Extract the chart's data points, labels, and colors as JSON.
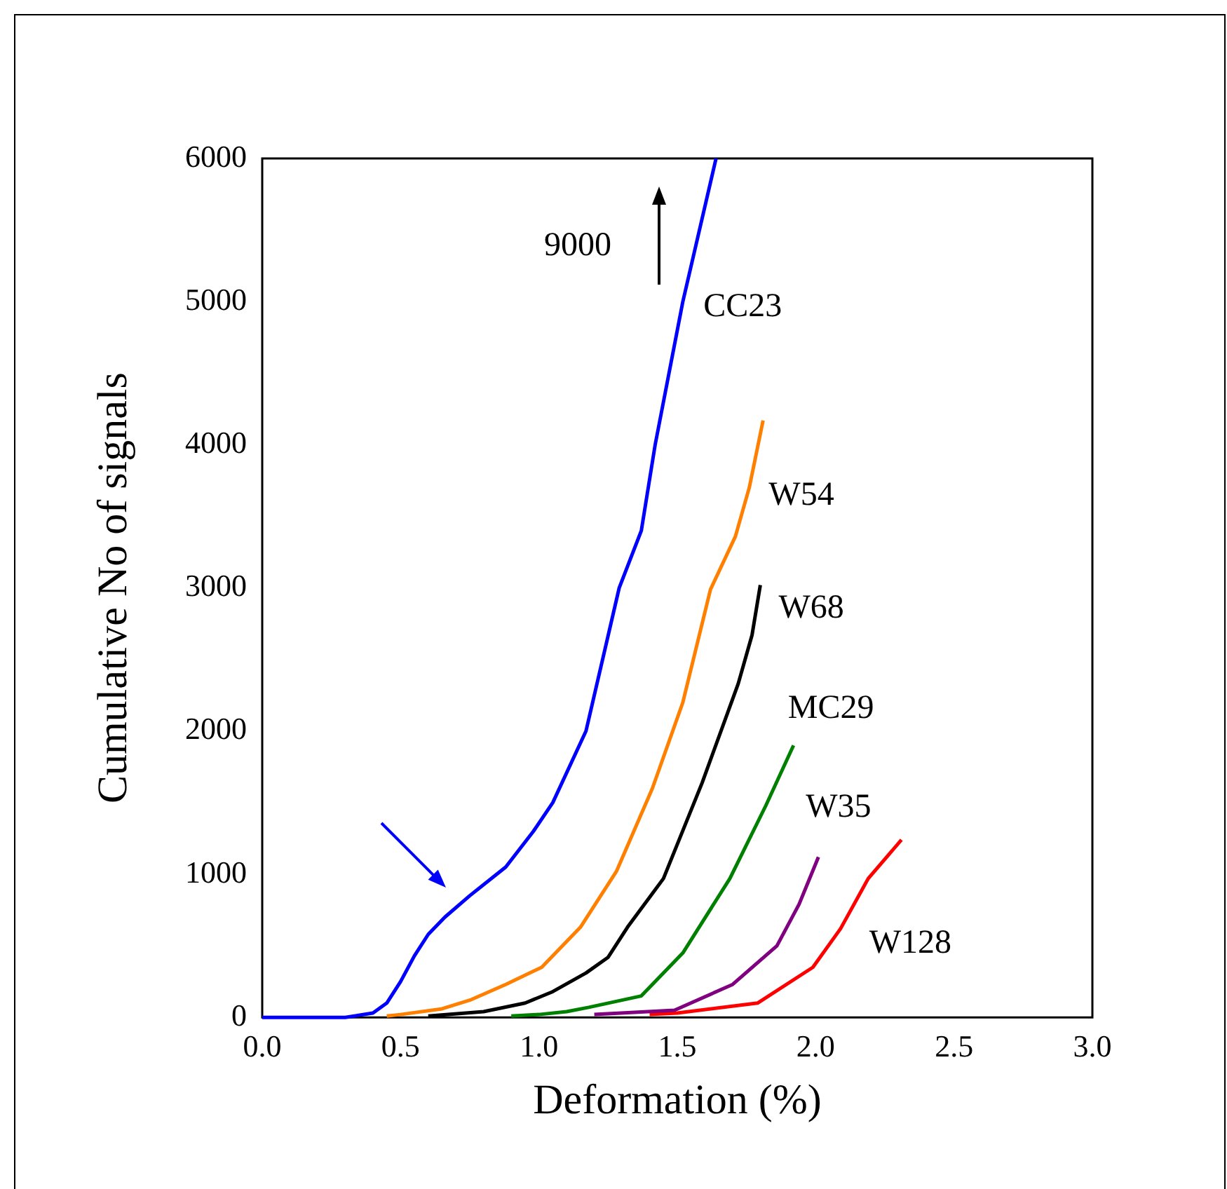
{
  "chart_data": {
    "type": "line",
    "xlabel": "Deformation (%)",
    "ylabel": "Cumulative No of signals",
    "annotations": [
      "9000"
    ],
    "xlim": [
      0,
      3
    ],
    "xticks": [
      {
        "value": 0,
        "label": "0.0"
      },
      {
        "value": 0.5,
        "label": "0.5"
      },
      {
        "value": 1,
        "label": "1.0"
      },
      {
        "value": 1.5,
        "label": "1.5"
      },
      {
        "value": 2,
        "label": "2.0"
      },
      {
        "value": 2.5,
        "label": "2.5"
      },
      {
        "value": 3,
        "label": "3.0"
      }
    ],
    "ylim": [
      0,
      6000
    ],
    "yticks": [
      0,
      1000,
      2000,
      3000,
      4000,
      5000,
      6000
    ],
    "grid": false,
    "legend": false,
    "marker": "none",
    "line_style": "solid",
    "series": [
      {
        "name": "CC23",
        "color": "#0000ff",
        "x": [
          0,
          0.3,
          0.4,
          0.45,
          0.5,
          0.55,
          0.6,
          0.66,
          0.75,
          0.88,
          0.98,
          1.05,
          1.17,
          1.29,
          1.37,
          1.42,
          1.52,
          1.64
        ],
        "values": [
          0,
          0,
          30,
          100,
          250,
          430,
          580,
          700,
          850,
          1050,
          1300,
          1500,
          2000,
          3000,
          3400,
          4000,
          5000,
          6000
        ]
      },
      {
        "name": "W54",
        "color": "#ff8000",
        "x": [
          0.45,
          0.5,
          0.65,
          0.75,
          0.88,
          1.01,
          1.15,
          1.28,
          1.41,
          1.52,
          1.62,
          1.71,
          1.76,
          1.81
        ],
        "values": [
          10,
          20,
          60,
          120,
          230,
          350,
          630,
          1020,
          1600,
          2200,
          2990,
          3360,
          3700,
          4170
        ]
      },
      {
        "name": "W68",
        "color": "#000000",
        "x": [
          0.6,
          0.8,
          0.95,
          1.05,
          1.17,
          1.25,
          1.32,
          1.45,
          1.59,
          1.72,
          1.77,
          1.8
        ],
        "values": [
          10,
          40,
          100,
          180,
          310,
          420,
          630,
          970,
          1640,
          2330,
          2670,
          3020
        ]
      },
      {
        "name": "MC29",
        "color": "#008000",
        "x": [
          0.9,
          1.0,
          1.1,
          1.18,
          1.37,
          1.52,
          1.69,
          1.82,
          1.92
        ],
        "values": [
          10,
          20,
          40,
          70,
          150,
          450,
          970,
          1480,
          1900
        ]
      },
      {
        "name": "W35",
        "color": "#800080",
        "x": [
          1.2,
          1.49,
          1.7,
          1.86,
          1.94,
          2.01
        ],
        "values": [
          20,
          50,
          230,
          500,
          790,
          1120
        ]
      },
      {
        "name": "W128",
        "color": "#ff0000",
        "x": [
          1.4,
          1.5,
          1.79,
          1.99,
          2.09,
          2.19,
          2.31
        ],
        "values": [
          20,
          30,
          100,
          350,
          620,
          970,
          1240
        ]
      }
    ]
  }
}
